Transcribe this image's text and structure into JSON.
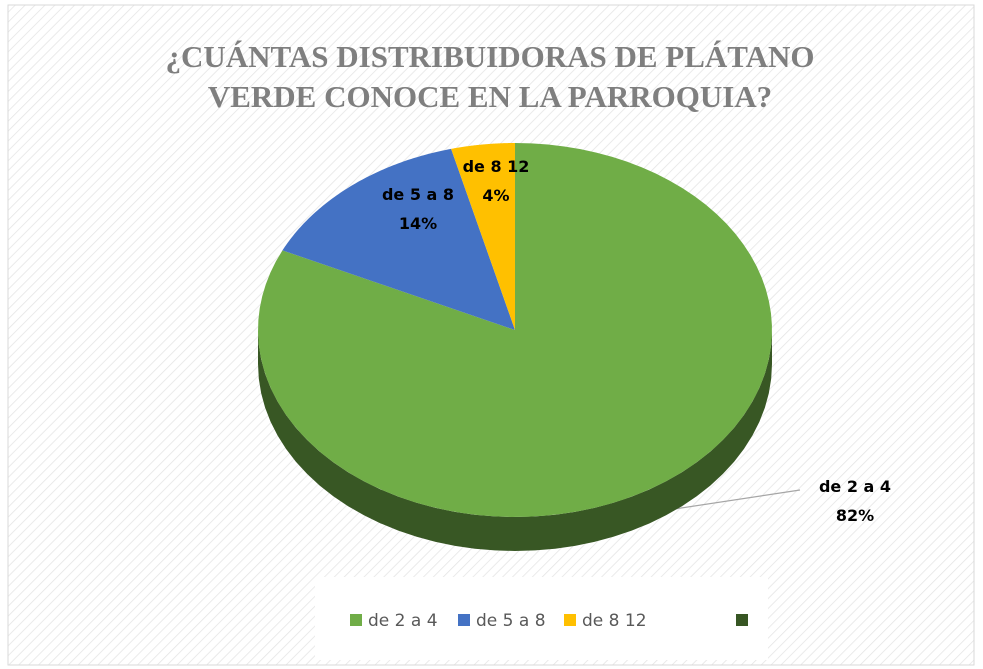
{
  "chart_data": {
    "type": "pie",
    "title": "¿CUÁNTAS DISTRIBUIDORAS DE PLÁTANO",
    "subtitle": "VERDE CONOCE EN LA PARROQUIA?",
    "categories": [
      "de 2 a 4",
      "de 5 a 8",
      "de 8 12",
      null
    ],
    "values": [
      82,
      14,
      4,
      0
    ],
    "value_labels": [
      "82%",
      "14%",
      "4%",
      null
    ],
    "colors": [
      "#70ad47",
      "#4472c4",
      "#ffc000",
      "#375623"
    ],
    "legend": "bottom"
  }
}
